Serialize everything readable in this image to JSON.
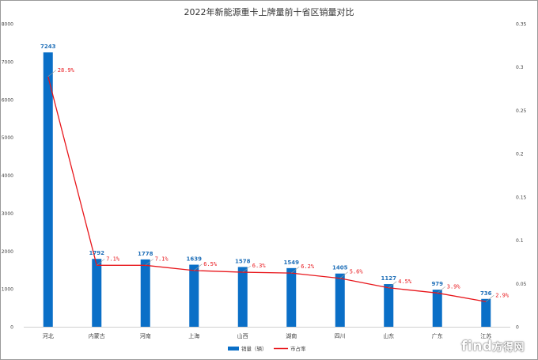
{
  "chart_data": {
    "type": "bar",
    "title": "2022年新能源重卡上牌量前十省区销量对比",
    "categories": [
      "河北",
      "内蒙古",
      "河南",
      "上海",
      "山西",
      "湖南",
      "四川",
      "山东",
      "广东",
      "江苏"
    ],
    "series": [
      {
        "name": "销量（辆）",
        "type": "bar",
        "axis": "left",
        "color": "#0a6fc7",
        "values": [
          7243,
          1792,
          1778,
          1639,
          1578,
          1549,
          1405,
          1127,
          979,
          736
        ],
        "labels": [
          "7243",
          "1792",
          "1778",
          "1639",
          "1578",
          "1549",
          "1405",
          "1127",
          "979",
          "736"
        ]
      },
      {
        "name": "市占率",
        "type": "line",
        "axis": "right",
        "color": "#e8161b",
        "values": [
          0.289,
          0.071,
          0.071,
          0.065,
          0.063,
          0.062,
          0.056,
          0.045,
          0.039,
          0.029
        ],
        "labels": [
          "28.9%",
          "7.1%",
          "7.1%",
          "6.5%",
          "6.3%",
          "6.2%",
          "5.6%",
          "4.5%",
          "3.9%",
          "2.9%"
        ]
      }
    ],
    "y_left": {
      "min": 0,
      "max": 8000,
      "ticks": [
        "0",
        "1000",
        "2000",
        "3000",
        "4000",
        "5000",
        "6000",
        "7000",
        "8000"
      ]
    },
    "y_right": {
      "min": 0,
      "max": 0.35,
      "ticks": [
        "0",
        "0.05",
        "0.1",
        "0.15",
        "0.2",
        "0.25",
        "0.3",
        "0.35"
      ]
    },
    "grid": false,
    "legend": "bottom"
  },
  "watermark": {
    "prefix": "find",
    "suffix": "方得网"
  }
}
